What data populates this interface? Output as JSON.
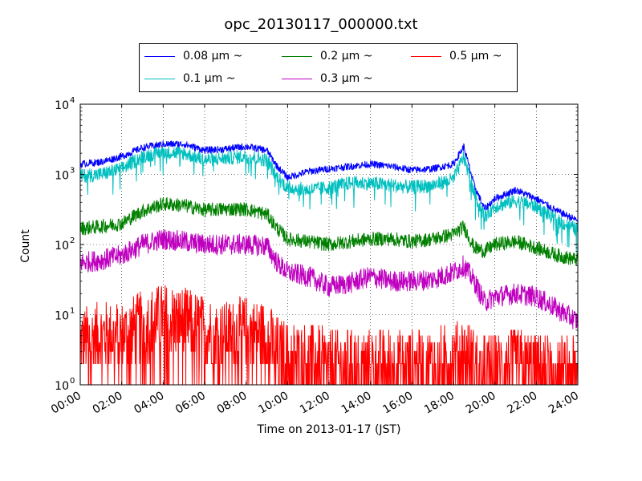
{
  "chart_data": {
    "type": "line",
    "title": "opc_20130117_000000.txt",
    "xlabel": "Time on 2013-01-17 (JST)",
    "ylabel": "Count",
    "yscale": "log",
    "ylim": [
      1,
      10000
    ],
    "xlim": [
      "00:00",
      "24:00"
    ],
    "grid": true,
    "legend_position": "top-center",
    "x_ticks": [
      "00:00",
      "02:00",
      "04:00",
      "06:00",
      "08:00",
      "10:00",
      "12:00",
      "14:00",
      "16:00",
      "18:00",
      "20:00",
      "22:00",
      "24:00"
    ],
    "y_ticks": [
      {
        "base": "10",
        "exp": "0"
      },
      {
        "base": "10",
        "exp": "1"
      },
      {
        "base": "10",
        "exp": "2"
      },
      {
        "base": "10",
        "exp": "3"
      },
      {
        "base": "10",
        "exp": "4"
      }
    ],
    "x": [
      "00:00",
      "01:00",
      "02:00",
      "03:00",
      "04:00",
      "05:00",
      "06:00",
      "07:00",
      "08:00",
      "09:00",
      "09:30",
      "10:00",
      "11:00",
      "12:00",
      "13:00",
      "14:00",
      "15:00",
      "16:00",
      "17:00",
      "18:00",
      "18:30",
      "19:00",
      "19:30",
      "20:00",
      "21:00",
      "22:00",
      "23:00",
      "24:00"
    ],
    "series": [
      {
        "name": "0.08 μm ~",
        "color": "#0000ff",
        "values": [
          1400,
          1500,
          1800,
          2400,
          2700,
          2700,
          2200,
          2300,
          2500,
          2200,
          1300,
          900,
          1100,
          1200,
          1300,
          1400,
          1300,
          1150,
          1200,
          1400,
          2500,
          700,
          320,
          450,
          600,
          450,
          300,
          220
        ]
      },
      {
        "name": "0.1 μm ~",
        "color": "#00bfbf",
        "values": [
          950,
          1000,
          1200,
          1800,
          2100,
          2000,
          1600,
          1700,
          1800,
          1600,
          900,
          650,
          600,
          650,
          750,
          750,
          700,
          650,
          700,
          850,
          1800,
          550,
          250,
          350,
          420,
          350,
          220,
          160
        ]
      },
      {
        "name": "0.2 μm ~",
        "color": "#008000",
        "values": [
          170,
          180,
          200,
          300,
          380,
          360,
          310,
          320,
          320,
          270,
          170,
          120,
          110,
          100,
          110,
          120,
          120,
          110,
          120,
          140,
          180,
          90,
          80,
          100,
          110,
          90,
          70,
          60
        ]
      },
      {
        "name": "0.3 μm ~",
        "color": "#bf00bf",
        "values": [
          55,
          60,
          70,
          100,
          120,
          110,
          100,
          100,
          100,
          95,
          55,
          40,
          35,
          25,
          28,
          35,
          30,
          30,
          32,
          40,
          50,
          30,
          15,
          18,
          20,
          18,
          12,
          8
        ]
      },
      {
        "name": "0.5 μm ~",
        "color": "#ff0000",
        "values": [
          4,
          5,
          5,
          7,
          9,
          8,
          6,
          5,
          6,
          5,
          3,
          2.5,
          2.5,
          2,
          2,
          2,
          2,
          2,
          2,
          2.5,
          3,
          2,
          1.6,
          1.8,
          2,
          1.8,
          1.6,
          1.5
        ]
      }
    ]
  }
}
